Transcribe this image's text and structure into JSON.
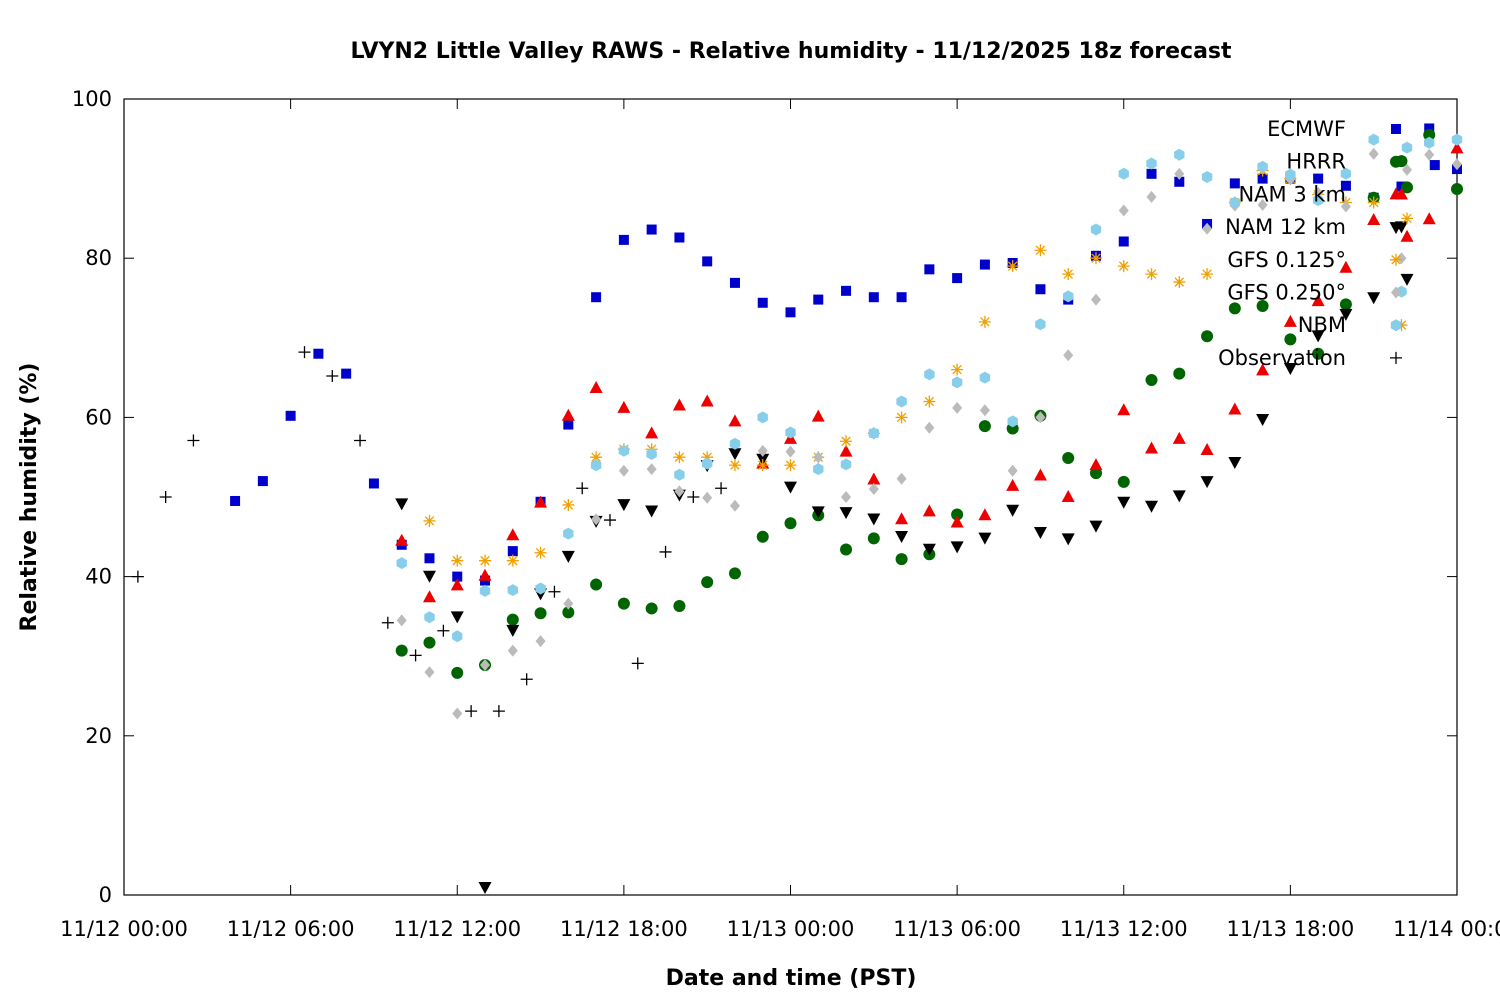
{
  "chart_data": {
    "type": "scatter",
    "title": "LVYN2 Little Valley RAWS - Relative humidity - 11/12/2025 18z forecast",
    "xlabel": "Date and time (PST)",
    "ylabel": "Relative humidity (%)",
    "x_unit": "hours",
    "x_ticks": [
      {
        "value": 0,
        "label": "11/12 00:00"
      },
      {
        "value": 6,
        "label": "11/12 06:00"
      },
      {
        "value": 12,
        "label": "11/12 12:00"
      },
      {
        "value": 18,
        "label": "11/12 18:00"
      },
      {
        "value": 24,
        "label": "11/13 00:00"
      },
      {
        "value": 30,
        "label": "11/13 06:00"
      },
      {
        "value": 36,
        "label": "11/13 12:00"
      },
      {
        "value": 42,
        "label": "11/13 18:00"
      },
      {
        "value": 48,
        "label": "11/14 00:00"
      }
    ],
    "xlim": [
      0,
      48
    ],
    "ylim": [
      0,
      100
    ],
    "y_ticks": [
      0,
      20,
      40,
      60,
      80,
      100
    ],
    "grid": false,
    "legend_position": "top-right",
    "series": [
      {
        "name": "ECMWF",
        "marker": "square",
        "color": "#0000cc",
        "points": [
          [
            4,
            49.5
          ],
          [
            5,
            52
          ],
          [
            6,
            60.2
          ],
          [
            7,
            68
          ],
          [
            8,
            65.5
          ],
          [
            9,
            51.7
          ],
          [
            10,
            44
          ],
          [
            11,
            42.3
          ],
          [
            12,
            40
          ],
          [
            13,
            39.5
          ],
          [
            14,
            43.2
          ],
          [
            15,
            49.4
          ],
          [
            16,
            59.1
          ],
          [
            17,
            75.1
          ],
          [
            18,
            82.3
          ],
          [
            19,
            83.6
          ],
          [
            20,
            82.6
          ],
          [
            21,
            79.6
          ],
          [
            22,
            76.9
          ],
          [
            23,
            74.4
          ],
          [
            24,
            73.2
          ],
          [
            25,
            74.8
          ],
          [
            26,
            75.9
          ],
          [
            27,
            75.1
          ],
          [
            28,
            75.1
          ],
          [
            29,
            78.6
          ],
          [
            30,
            77.5
          ],
          [
            31,
            79.2
          ],
          [
            32,
            79.4
          ],
          [
            33,
            76.1
          ],
          [
            34,
            74.8
          ],
          [
            35,
            80.3
          ],
          [
            36,
            82.1
          ],
          [
            37,
            90.6
          ],
          [
            38,
            89.6
          ],
          [
            39,
            84.3
          ],
          [
            40,
            89.4
          ],
          [
            41,
            90
          ],
          [
            42,
            90
          ],
          [
            43,
            90
          ],
          [
            44,
            89.1
          ],
          [
            45,
            87.6
          ],
          [
            46,
            89
          ],
          [
            47,
            96.3
          ],
          [
            47.2,
            91.7
          ],
          [
            48,
            91.2
          ]
        ]
      },
      {
        "name": "HRRR",
        "marker": "circle",
        "color": "#006400",
        "points": [
          [
            10,
            30.7
          ],
          [
            11,
            31.7
          ],
          [
            12,
            27.9
          ],
          [
            13,
            28.9
          ],
          [
            14,
            34.6
          ],
          [
            15,
            35.4
          ],
          [
            16,
            35.5
          ],
          [
            17,
            39
          ],
          [
            18,
            36.6
          ],
          [
            19,
            36
          ],
          [
            20,
            36.3
          ],
          [
            21,
            39.3
          ],
          [
            22,
            40.4
          ],
          [
            23,
            45
          ],
          [
            24,
            46.7
          ],
          [
            25,
            47.7
          ],
          [
            26,
            43.4
          ],
          [
            27,
            44.8
          ],
          [
            28,
            42.2
          ],
          [
            29,
            42.8
          ],
          [
            30,
            47.8
          ],
          [
            31,
            58.9
          ],
          [
            32,
            58.6
          ],
          [
            33,
            60.2
          ],
          [
            34,
            54.9
          ],
          [
            35,
            53
          ],
          [
            36,
            51.9
          ],
          [
            37,
            64.7
          ],
          [
            38,
            65.5
          ],
          [
            39,
            70.2
          ],
          [
            40,
            73.7
          ],
          [
            41,
            74
          ],
          [
            42,
            69.8
          ],
          [
            43,
            68
          ],
          [
            44,
            74.2
          ],
          [
            45,
            87.6
          ],
          [
            46,
            92.2
          ],
          [
            46.2,
            88.9
          ],
          [
            47,
            95.5
          ],
          [
            48,
            88.7
          ]
        ]
      },
      {
        "name": "NAM 3 km",
        "marker": "triangle-up",
        "color": "#ee0000",
        "points": [
          [
            10,
            44.5
          ],
          [
            11,
            37.4
          ],
          [
            12,
            38.9
          ],
          [
            13,
            40.1
          ],
          [
            14,
            45.2
          ],
          [
            15,
            49.3
          ],
          [
            16,
            60.2
          ],
          [
            17,
            63.7
          ],
          [
            18,
            61.2
          ],
          [
            19,
            58
          ],
          [
            20,
            61.5
          ],
          [
            21,
            62
          ],
          [
            22,
            59.5
          ],
          [
            23,
            54.2
          ],
          [
            24,
            57.3
          ],
          [
            25,
            60.1
          ],
          [
            26,
            55.7
          ],
          [
            27,
            52.2
          ],
          [
            28,
            47.2
          ],
          [
            29,
            48.2
          ],
          [
            30,
            46.8
          ],
          [
            31,
            47.7
          ],
          [
            32,
            51.4
          ],
          [
            33,
            52.7
          ],
          [
            34,
            50
          ],
          [
            35,
            54
          ],
          [
            36,
            60.9
          ],
          [
            37,
            56.1
          ],
          [
            38,
            57.3
          ],
          [
            39,
            55.9
          ],
          [
            40,
            61
          ],
          [
            41,
            65.9
          ],
          [
            42,
            72
          ],
          [
            43,
            74.6
          ],
          [
            44,
            78.8
          ],
          [
            45,
            84.8
          ],
          [
            46,
            88
          ],
          [
            46.2,
            82.7
          ],
          [
            47,
            84.9
          ],
          [
            48,
            93.8
          ]
        ]
      },
      {
        "name": "NAM 12 km",
        "marker": "triangle-down",
        "color": "#000000",
        "points": [
          [
            10,
            49.2
          ],
          [
            11,
            40.1
          ],
          [
            12,
            35
          ],
          [
            13,
            1
          ],
          [
            14,
            33.3
          ],
          [
            15,
            37.9
          ],
          [
            16,
            42.6
          ],
          [
            17,
            47
          ],
          [
            18,
            49.1
          ],
          [
            19,
            48.3
          ],
          [
            20,
            50.3
          ],
          [
            21,
            54
          ],
          [
            22,
            55.5
          ],
          [
            23,
            54.8
          ],
          [
            24,
            51.3
          ],
          [
            25,
            48.2
          ],
          [
            26,
            48.1
          ],
          [
            27,
            47.3
          ],
          [
            28,
            45.1
          ],
          [
            29,
            43.5
          ],
          [
            30,
            43.8
          ],
          [
            31,
            44.9
          ],
          [
            32,
            48.4
          ],
          [
            33,
            45.6
          ],
          [
            34,
            44.8
          ],
          [
            35,
            46.4
          ],
          [
            36,
            49.4
          ],
          [
            37,
            48.9
          ],
          [
            38,
            50.2
          ],
          [
            39,
            52
          ],
          [
            40,
            54.4
          ],
          [
            41,
            59.8
          ],
          [
            42,
            66.2
          ],
          [
            43,
            70.3
          ],
          [
            44,
            73
          ],
          [
            45,
            75.1
          ],
          [
            46,
            84
          ],
          [
            46.2,
            77.4
          ]
        ]
      },
      {
        "name": "GFS 0.125°",
        "marker": "star",
        "color": "#f0a000",
        "points": [
          [
            11,
            47
          ],
          [
            12,
            42
          ],
          [
            13,
            42
          ],
          [
            14,
            42
          ],
          [
            15,
            43
          ],
          [
            16,
            49
          ],
          [
            17,
            55
          ],
          [
            18,
            56
          ],
          [
            19,
            56
          ],
          [
            20,
            55
          ],
          [
            21,
            55
          ],
          [
            22,
            54
          ],
          [
            23,
            54
          ],
          [
            24,
            54
          ],
          [
            25,
            55
          ],
          [
            26,
            57
          ],
          [
            27,
            58
          ],
          [
            28,
            60
          ],
          [
            29,
            62
          ],
          [
            30,
            66
          ],
          [
            31,
            72
          ],
          [
            32,
            79
          ],
          [
            33,
            81
          ],
          [
            34,
            78
          ],
          [
            35,
            80
          ],
          [
            36,
            79
          ],
          [
            37,
            78
          ],
          [
            38,
            77
          ],
          [
            39,
            78
          ],
          [
            40,
            87
          ],
          [
            41,
            91
          ],
          [
            42,
            90
          ],
          [
            43,
            88
          ],
          [
            44,
            87
          ],
          [
            45,
            87
          ],
          [
            46,
            71.6
          ],
          [
            46.2,
            85
          ]
        ]
      },
      {
        "name": "GFS 0.250°",
        "marker": "diamond",
        "color": "#bbbbbb",
        "points": [
          [
            10,
            34.5
          ],
          [
            11,
            28
          ],
          [
            12,
            22.8
          ],
          [
            13,
            28.9
          ],
          [
            14,
            30.7
          ],
          [
            15,
            31.9
          ],
          [
            16,
            36.6
          ],
          [
            17,
            47.2
          ],
          [
            18,
            53.3
          ],
          [
            19,
            53.5
          ],
          [
            20,
            50.7
          ],
          [
            21,
            49.9
          ],
          [
            22,
            48.9
          ],
          [
            23,
            55.8
          ],
          [
            24,
            55.7
          ],
          [
            25,
            55
          ],
          [
            26,
            50
          ],
          [
            27,
            51
          ],
          [
            28,
            52.3
          ],
          [
            29,
            58.7
          ],
          [
            30,
            61.2
          ],
          [
            31,
            60.9
          ],
          [
            32,
            53.3
          ],
          [
            33,
            60
          ],
          [
            34,
            67.8
          ],
          [
            35,
            74.8
          ],
          [
            36,
            86
          ],
          [
            37,
            87.7
          ],
          [
            38,
            90.6
          ],
          [
            39,
            83.7
          ],
          [
            40,
            86.6
          ],
          [
            41,
            86.7
          ],
          [
            42,
            89.9
          ],
          [
            43,
            88.2
          ],
          [
            44,
            86.5
          ],
          [
            45,
            93.1
          ],
          [
            46,
            80
          ],
          [
            46.2,
            91.1
          ],
          [
            47,
            93
          ],
          [
            48,
            91.8
          ]
        ]
      },
      {
        "name": "NBM",
        "marker": "hexagon",
        "color": "#87ceeb",
        "points": [
          [
            10,
            41.7
          ],
          [
            11,
            34.9
          ],
          [
            12,
            32.5
          ],
          [
            13,
            38.2
          ],
          [
            14,
            38.3
          ],
          [
            15,
            38.5
          ],
          [
            16,
            45.4
          ],
          [
            17,
            54
          ],
          [
            18,
            55.8
          ],
          [
            19,
            55.4
          ],
          [
            20,
            52.8
          ],
          [
            21,
            54.2
          ],
          [
            22,
            56.7
          ],
          [
            23,
            60
          ],
          [
            24,
            58.1
          ],
          [
            25,
            53.5
          ],
          [
            26,
            54.1
          ],
          [
            27,
            58
          ],
          [
            28,
            62
          ],
          [
            29,
            65.4
          ],
          [
            30,
            64.4
          ],
          [
            31,
            65
          ],
          [
            32,
            59.5
          ],
          [
            33,
            71.7
          ],
          [
            34,
            75.2
          ],
          [
            35,
            83.6
          ],
          [
            36,
            90.6
          ],
          [
            37,
            91.9
          ],
          [
            38,
            93
          ],
          [
            39,
            90.2
          ],
          [
            40,
            87
          ],
          [
            41,
            91.5
          ],
          [
            42,
            90.5
          ],
          [
            43,
            87.3
          ],
          [
            44,
            90.6
          ],
          [
            45,
            94.9
          ],
          [
            46,
            75.8
          ],
          [
            46.2,
            93.9
          ],
          [
            47,
            94.5
          ],
          [
            48,
            94.9
          ]
        ]
      },
      {
        "name": "Observation",
        "marker": "plus",
        "color": "#000000",
        "points": [
          [
            0.5,
            40
          ],
          [
            1.5,
            50
          ],
          [
            2.5,
            57.1
          ],
          [
            6.5,
            68.2
          ],
          [
            7.5,
            65.2
          ],
          [
            8.5,
            57.1
          ],
          [
            9.5,
            34.2
          ],
          [
            10.5,
            30.1
          ],
          [
            11.5,
            33.2
          ],
          [
            12.5,
            23.1
          ],
          [
            13.5,
            23.1
          ],
          [
            14.5,
            27.1
          ],
          [
            15.5,
            38.1
          ],
          [
            16.5,
            51.1
          ],
          [
            17.5,
            47.1
          ],
          [
            18.5,
            29.1
          ],
          [
            19.5,
            43.1
          ],
          [
            20.5,
            50
          ],
          [
            21.5,
            51.1
          ]
        ]
      }
    ]
  }
}
